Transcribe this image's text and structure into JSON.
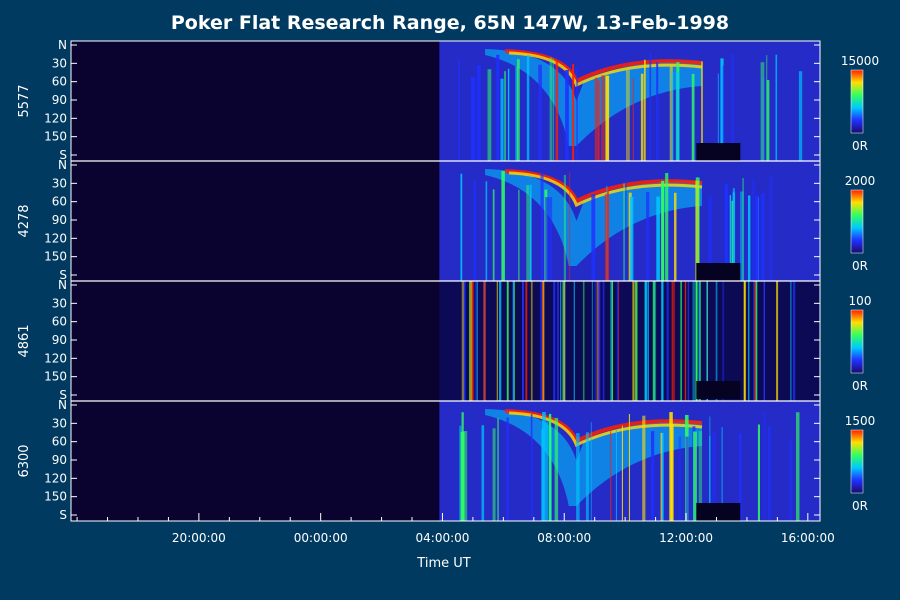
{
  "chart_data": {
    "type": "heatmap",
    "title": "Poker Flat Research Range, 65N 147W, 13-Feb-1998",
    "xlabel": "Time UT",
    "x_tick_labels": [
      "20:00:00",
      "00:00:00",
      "04:00:00",
      "08:00:00",
      "12:00:00",
      "16:00:00"
    ],
    "x_tick_hours": [
      20,
      24,
      28,
      32,
      36,
      40
    ],
    "x_range_hours": [
      15.8,
      40.4
    ],
    "data_start_hour": 27.9,
    "y_tick_labels": [
      "N",
      "30",
      "60",
      "90",
      "120",
      "150",
      "S"
    ],
    "y_range": [
      0,
      180
    ],
    "panels": [
      {
        "name": "5577",
        "scale_max": "15000",
        "scale_min": "0R"
      },
      {
        "name": "4278",
        "scale_max": "2000",
        "scale_min": "0R"
      },
      {
        "name": "4861",
        "scale_max": "100",
        "scale_min": "0R"
      },
      {
        "name": "6300",
        "scale_max": "1500",
        "scale_min": "0R"
      }
    ]
  }
}
